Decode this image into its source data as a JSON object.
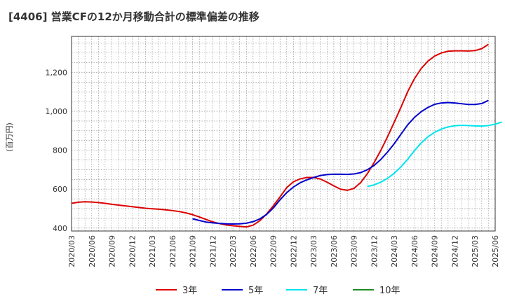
{
  "chart_data": {
    "type": "line",
    "title": "[4406]  営業CFの12か月移動合計の標準偏差の推移",
    "ylabel": "(百万円)",
    "xlabel": "",
    "ylim": [
      385,
      1385
    ],
    "yticks": [
      400,
      600,
      800,
      1000,
      1200
    ],
    "ytick_labels": [
      "400",
      "600",
      "800",
      "1,000",
      "1,200"
    ],
    "x_tick_labels": [
      "2020/03",
      "2020/06",
      "2020/09",
      "2020/12",
      "2021/03",
      "2021/06",
      "2021/09",
      "2021/12",
      "2022/03",
      "2022/06",
      "2022/09",
      "2022/12",
      "2023/03",
      "2023/06",
      "2023/09",
      "2023/12",
      "2024/03",
      "2024/06",
      "2024/09",
      "2024/12",
      "2025/03",
      "2025/06"
    ],
    "grid": true,
    "legend_position": "bottom",
    "series": [
      {
        "name": "3年",
        "color": "#dd0000",
        "start_index": 0,
        "values": [
          527,
          533,
          535,
          534,
          531,
          527,
          522,
          518,
          514,
          510,
          506,
          502,
          499,
          497,
          494,
          490,
          485,
          478,
          469,
          457,
          444,
          432,
          423,
          416,
          412,
          409,
          406,
          415,
          438,
          472,
          514,
          560,
          608,
          638,
          653,
          660,
          660,
          652,
          636,
          617,
          600,
          594,
          604,
          634,
          680,
          737,
          800,
          870,
          945,
          1022,
          1102,
          1168,
          1220,
          1258,
          1284,
          1300,
          1309,
          1311,
          1311,
          1310,
          1312,
          1322,
          1344
        ]
      },
      {
        "name": "5年",
        "color": "#0000cc",
        "start_index": 18,
        "values": [
          448,
          439,
          431,
          427,
          424,
          422,
          421,
          422,
          425,
          433,
          447,
          470,
          503,
          545,
          582,
          611,
          633,
          648,
          660,
          670,
          675,
          677,
          677,
          676,
          678,
          685,
          700,
          722,
          753,
          791,
          834,
          883,
          931,
          969,
          998,
          1020,
          1036,
          1043,
          1045,
          1043,
          1039,
          1035,
          1035,
          1040,
          1056
        ]
      },
      {
        "name": "7年",
        "color": "#00e5ee",
        "start_index": 44,
        "values": [
          614,
          622,
          636,
          656,
          682,
          715,
          754,
          798,
          838,
          869,
          892,
          909,
          920,
          926,
          928,
          927,
          925,
          924,
          927,
          934,
          945
        ]
      },
      {
        "name": "10年",
        "color": "#228b22",
        "start_index": 0,
        "values": []
      }
    ]
  }
}
